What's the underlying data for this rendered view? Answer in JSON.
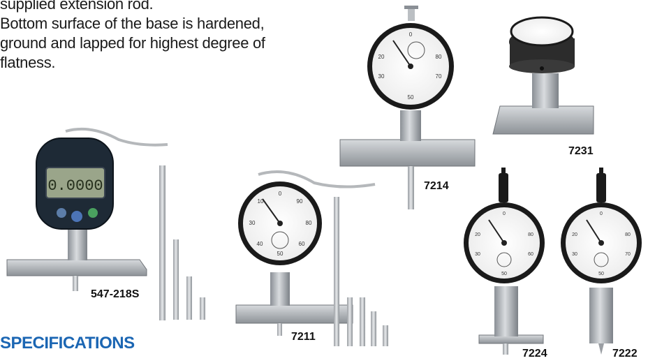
{
  "intro": {
    "lines": [
      "supplied extension rod.",
      "Bottom surface of the base is hardened,",
      "ground and lapped for highest degree of",
      "flatness."
    ]
  },
  "products": {
    "digital": {
      "model": "547-218S",
      "display": "0.0000"
    },
    "g7211": {
      "model": "7211"
    },
    "g7214": {
      "model": "7214"
    },
    "g7231": {
      "model": "7231"
    },
    "g7224": {
      "model": "7224"
    },
    "g7222": {
      "model": "7222"
    }
  },
  "dial_numbers": [
    "0",
    "10",
    "20",
    "30",
    "40",
    "50",
    "60",
    "70",
    "80",
    "90"
  ],
  "section": {
    "heading": "SPECIFICATIONS"
  },
  "colors": {
    "heading": "#1b66b3",
    "display_bg": "#9aa58a",
    "body_metal": "#a9adb2"
  }
}
